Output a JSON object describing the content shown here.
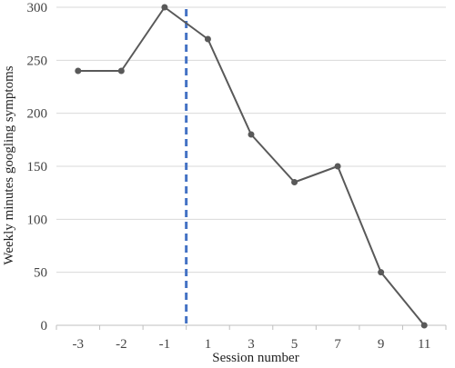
{
  "chart_data": {
    "type": "line",
    "title": "",
    "xlabel": "Session number",
    "ylabel": "Weekly minutes googling symptoms",
    "categories": [
      "-3",
      "-2",
      "-1",
      "1",
      "3",
      "5",
      "7",
      "9",
      "11"
    ],
    "series": [
      {
        "values": [
          240,
          240,
          300,
          270,
          180,
          135,
          150,
          50,
          0
        ]
      }
    ],
    "ylim": [
      0,
      300
    ],
    "yticks": [
      0,
      50,
      100,
      150,
      200,
      250,
      300
    ],
    "grid": true,
    "legend": "none",
    "phase_change_line": {
      "between": [
        "-1",
        "1"
      ],
      "style": "dashed"
    },
    "colors": {
      "series": "#595959",
      "phase_line": "#4472C4",
      "grid": "#d9d9d9",
      "axis": "#bfbfbf"
    }
  }
}
